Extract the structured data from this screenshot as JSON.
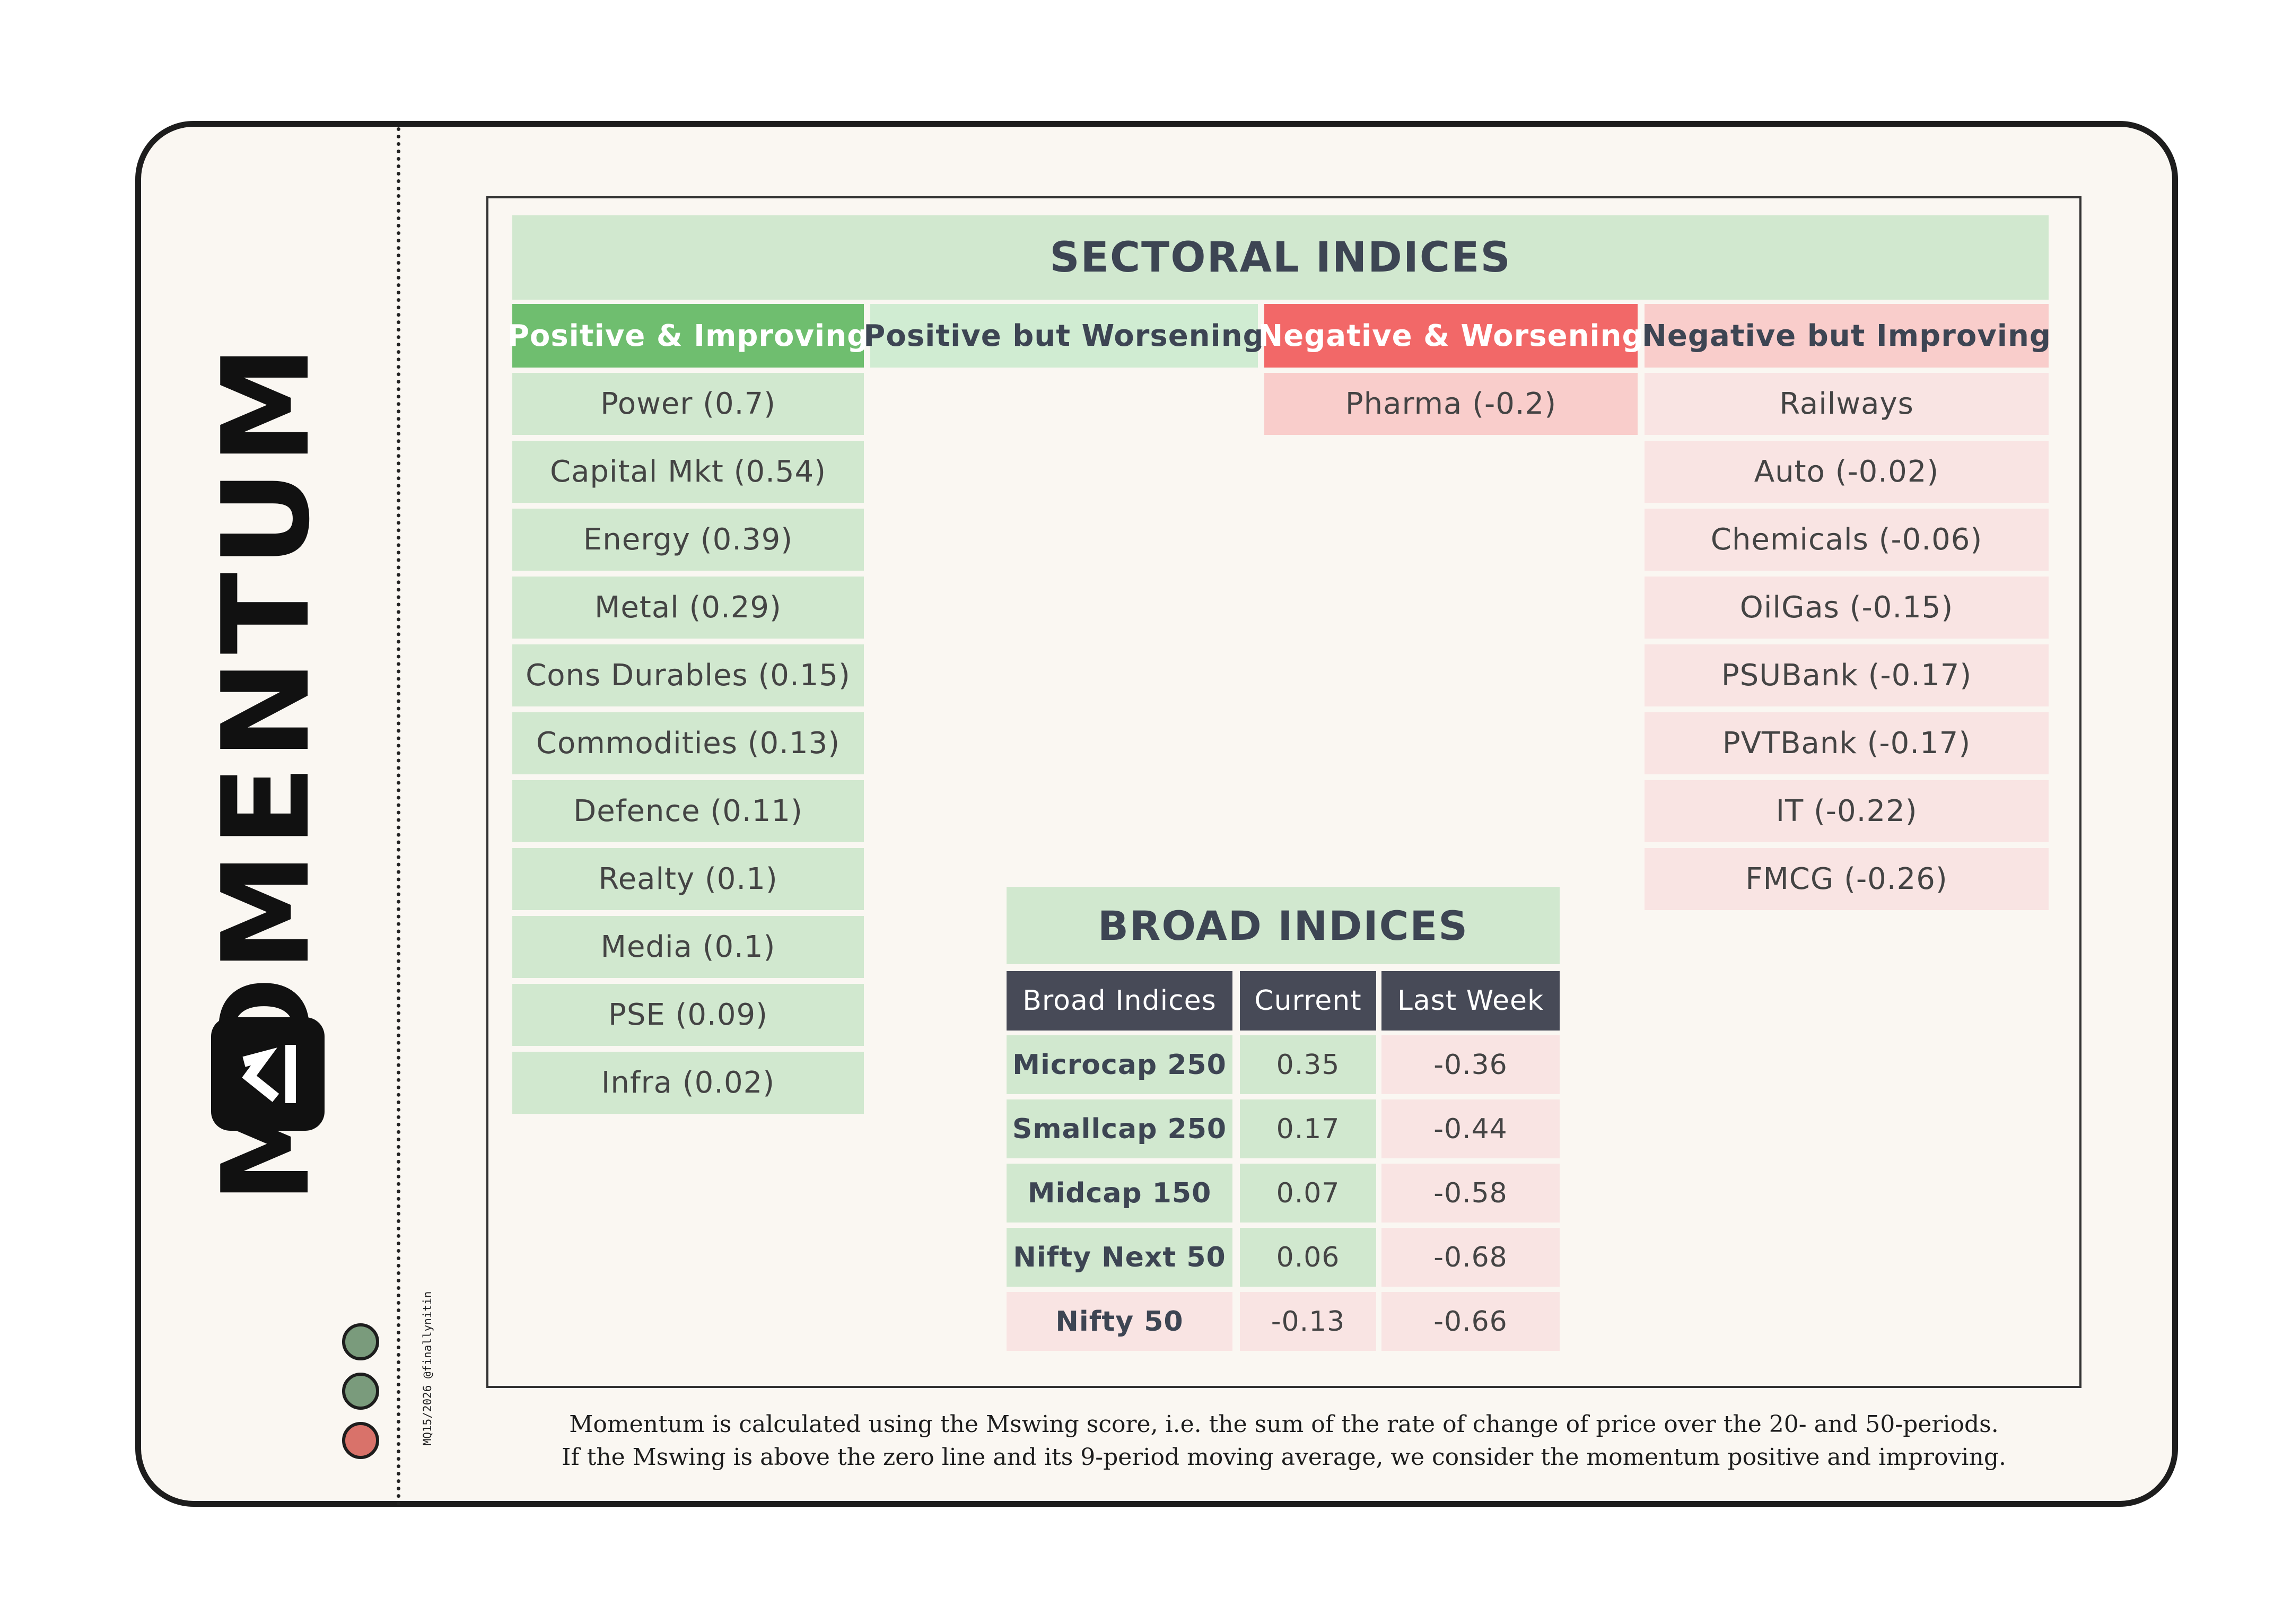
{
  "brand": {
    "wordmark": "MOMENTUM",
    "credit": "MQ15/2026 @finallynitin"
  },
  "status_dots": [
    "#7a9b7c",
    "#7a9b7c",
    "#d9726a"
  ],
  "sectoral": {
    "title": "SECTORAL INDICES",
    "columns": [
      {
        "header": "Positive & Improving",
        "header_bg": "#6fbe6f",
        "header_color": "#ffffff",
        "cell_bg": "#d1e8cf",
        "items": [
          "Power (0.7)",
          "Capital Mkt (0.54)",
          "Energy (0.39)",
          "Metal (0.29)",
          "Cons Durables (0.15)",
          "Commodities (0.13)",
          "Defence (0.11)",
          "Realty (0.1)",
          "Media (0.1)",
          "PSE (0.09)",
          "Infra (0.02)"
        ]
      },
      {
        "header": "Positive but Worsening",
        "header_bg": "#d0ecd2",
        "header_color": "#3d4553",
        "cell_bg": "#d1e8cf",
        "items": []
      },
      {
        "header": "Negative & Worsening",
        "header_bg": "#f26868",
        "header_color": "#ffffff",
        "cell_bg": "#f9cdcb",
        "items": [
          "Pharma (-0.2)"
        ]
      },
      {
        "header": "Negative but Improving",
        "header_bg": "#f9cdcb",
        "header_color": "#3d4553",
        "cell_bg": "#f9e4e3",
        "items": [
          "Railways",
          "Auto (-0.02)",
          "Chemicals (-0.06)",
          "OilGas (-0.15)",
          "PSUBank (-0.17)",
          "PVTBank (-0.17)",
          "IT (-0.22)",
          "FMCG (-0.26)"
        ]
      }
    ]
  },
  "broad": {
    "title": "BROAD INDICES",
    "headers": [
      "Broad Indices",
      "Current",
      "Last Week"
    ],
    "rows": [
      {
        "name": "Microcap 250",
        "current": "0.35",
        "last_week": "-0.36",
        "name_bg": "#d1e8cf",
        "current_bg": "#d1e8cf",
        "last_bg": "#f9e4e3"
      },
      {
        "name": "Smallcap 250",
        "current": "0.17",
        "last_week": "-0.44",
        "name_bg": "#d1e8cf",
        "current_bg": "#d1e8cf",
        "last_bg": "#f9e4e3"
      },
      {
        "name": "Midcap 150",
        "current": "0.07",
        "last_week": "-0.58",
        "name_bg": "#d1e8cf",
        "current_bg": "#d1e8cf",
        "last_bg": "#f9e4e3"
      },
      {
        "name": "Nifty Next 50",
        "current": "0.06",
        "last_week": "-0.68",
        "name_bg": "#d1e8cf",
        "current_bg": "#d1e8cf",
        "last_bg": "#f9e4e3"
      },
      {
        "name": "Nifty 50",
        "current": "-0.13",
        "last_week": "-0.66",
        "name_bg": "#f9e4e3",
        "current_bg": "#f9e4e3",
        "last_bg": "#f9e4e3"
      }
    ]
  },
  "footnote": [
    "Momentum is calculated using the Mswing score, i.e. the sum of the rate of change of price over the 20- and 50-periods.",
    "If the Mswing is above the zero line and its 9-period moving average, we consider the momentum positive and improving."
  ]
}
